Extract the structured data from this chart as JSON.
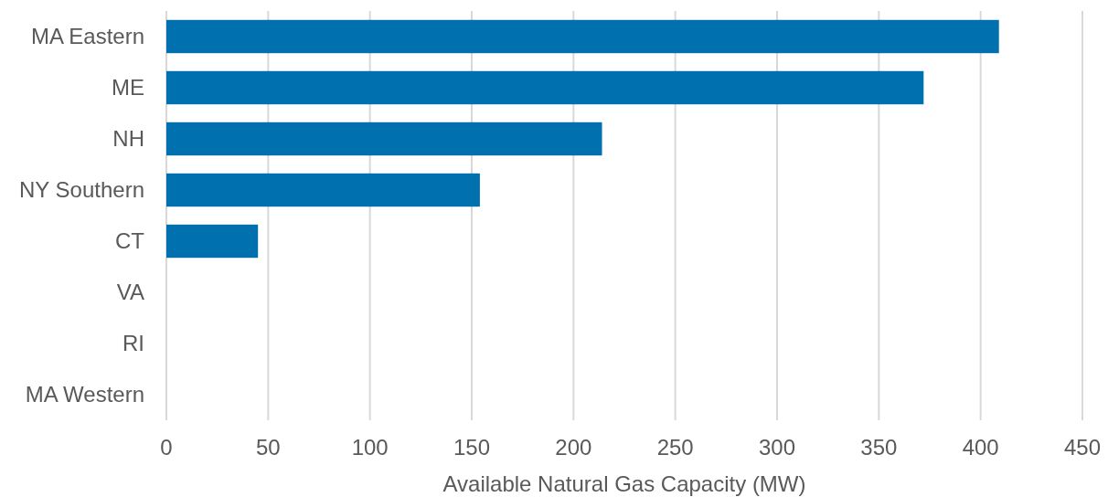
{
  "chart_data": {
    "type": "bar",
    "orientation": "horizontal",
    "xlabel": "Available Natural Gas Capacity (MW)",
    "categories": [
      "MA Eastern",
      "ME",
      "NH",
      "NY Southern",
      "CT",
      "VA",
      "RI",
      "MA Western"
    ],
    "values": [
      409,
      372,
      214,
      154,
      45,
      0,
      0,
      0
    ],
    "color": "#0070ae",
    "xlim": [
      0,
      450
    ],
    "xticks": [
      0,
      50,
      100,
      150,
      200,
      250,
      300,
      350,
      400,
      450
    ],
    "grid": "x"
  }
}
